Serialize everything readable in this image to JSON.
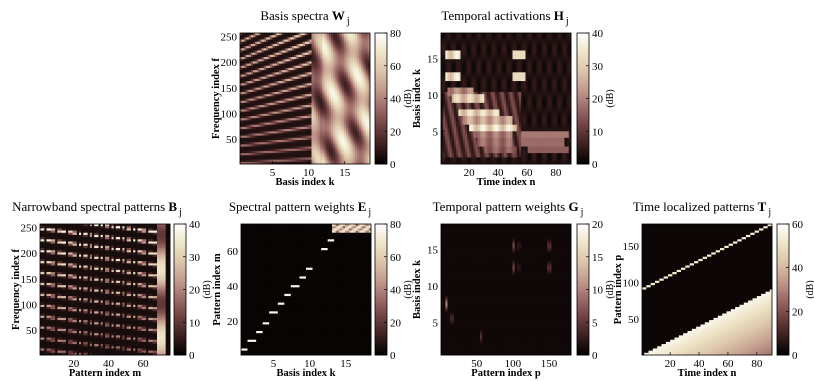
{
  "chart_data": [
    {
      "type": "heatmap",
      "title": "Basis spectra",
      "title_symbol": "W",
      "title_subscript": "j",
      "xlabel": "Basis index k",
      "ylabel": "Frequency index f",
      "xlim": [
        0.5,
        18.5
      ],
      "ylim": [
        1,
        257
      ],
      "xticks": [
        "5",
        "10",
        "15"
      ],
      "yticks": [
        "50",
        "100",
        "150",
        "200",
        "250"
      ],
      "colorbar": {
        "ticks": [
          "0",
          "20",
          "40",
          "60",
          "80"
        ],
        "label": "(dB)",
        "range": [
          0,
          80
        ]
      },
      "pattern": "basis"
    },
    {
      "type": "heatmap",
      "title": "Temporal activations",
      "title_symbol": "H",
      "title_subscript": "j",
      "xlabel": "Time index n",
      "ylabel": "Basis index k",
      "xlim": [
        0.5,
        90.5
      ],
      "ylim": [
        0.5,
        18.5
      ],
      "xticks": [
        "20",
        "40",
        "60",
        "80"
      ],
      "yticks": [
        "5",
        "10",
        "15"
      ],
      "colorbar": {
        "ticks": [
          "0",
          "10",
          "20",
          "30",
          "40"
        ],
        "label": "(dB)",
        "range": [
          0,
          40
        ]
      },
      "pattern": "activations"
    },
    {
      "type": "heatmap",
      "title": "Narrowband spectral patterns",
      "title_symbol": "B",
      "title_subscript": "j",
      "xlabel": "Pattern index m",
      "ylabel": "Frequency index f",
      "xlim": [
        0.5,
        75.5
      ],
      "ylim": [
        1,
        257
      ],
      "xticks": [
        "20",
        "40",
        "60"
      ],
      "yticks": [
        "50",
        "100",
        "150",
        "200",
        "250"
      ],
      "colorbar": {
        "ticks": [
          "0",
          "10",
          "20",
          "30",
          "40"
        ],
        "label": "(dB)",
        "range": [
          0,
          40
        ]
      },
      "pattern": "narrowband"
    },
    {
      "type": "heatmap",
      "title": "Spectral pattern weights",
      "title_symbol": "E",
      "title_subscript": "j",
      "xlabel": "Basis index k",
      "ylabel": "Pattern index m",
      "xlim": [
        0.5,
        18.5
      ],
      "ylim": [
        0.5,
        75.5
      ],
      "xticks": [
        "5",
        "10",
        "15"
      ],
      "yticks": [
        "20",
        "40",
        "60"
      ],
      "colorbar": {
        "ticks": [
          "0",
          "20",
          "40",
          "60",
          "80"
        ],
        "label": "(dB)",
        "range": [
          0,
          80
        ]
      },
      "pattern": "sweights"
    },
    {
      "type": "heatmap",
      "title": "Temporal pattern weights",
      "title_symbol": "G",
      "title_subscript": "j",
      "xlabel": "Pattern index p",
      "ylabel": "Basis index k",
      "xlim": [
        0.5,
        180.5
      ],
      "ylim": [
        0.5,
        18.5
      ],
      "xticks": [
        "50",
        "100",
        "150"
      ],
      "yticks": [
        "5",
        "10",
        "15"
      ],
      "colorbar": {
        "ticks": [
          "0",
          "5",
          "10",
          "15",
          "20"
        ],
        "label": "(dB)",
        "range": [
          0,
          20
        ]
      },
      "pattern": "tweights"
    },
    {
      "type": "heatmap",
      "title": "Time localized patterns",
      "title_symbol": "T",
      "title_subscript": "j",
      "xlabel": "Time index n",
      "ylabel": "Pattern index p",
      "xlim": [
        0.5,
        90.5
      ],
      "ylim": [
        0.5,
        180.5
      ],
      "xticks": [
        "20",
        "40",
        "60",
        "80"
      ],
      "yticks": [
        "50",
        "100",
        "150"
      ],
      "colorbar": {
        "ticks": [
          "0",
          "20",
          "40",
          "60"
        ],
        "label": "(dB)",
        "range": [
          0,
          60
        ]
      },
      "pattern": "timeloc"
    }
  ],
  "colors": {
    "colormap": [
      "#000000",
      "#3a1e1e",
      "#6e4040",
      "#9d6b68",
      "#c39c8e",
      "#ddc6aa",
      "#efe6c8",
      "#ffffff"
    ]
  }
}
